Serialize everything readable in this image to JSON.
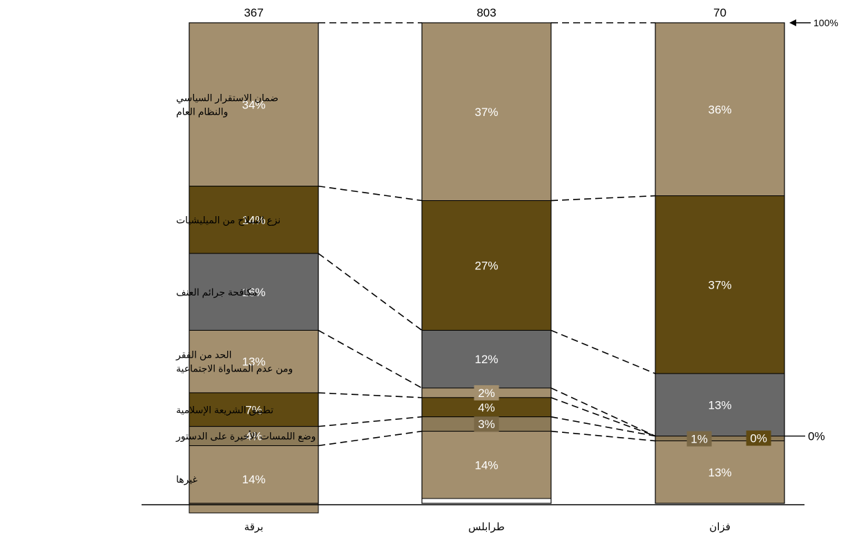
{
  "colors": {
    "tan": "#A38F6E",
    "brown": "#604A12",
    "gray": "#686868",
    "mid": "#8C7A58",
    "label_bg_tan": "#A38F6E",
    "label_bg_dark": "#7A6846",
    "text_dark": "#000000",
    "text_light": "#ffffff"
  },
  "chart_data": {
    "type": "bar",
    "stacked": true,
    "normalized": true,
    "top_marker_label": "100%",
    "zero_marker_label": "0%",
    "categories": [
      "برقة",
      "طرابلس",
      "فزان"
    ],
    "counts": [
      "367",
      "803",
      "70"
    ],
    "series": [
      {
        "name": "ضمان الاستقرار السياسي\nوالنظام العام",
        "color_key": "tan",
        "values": [
          34,
          37,
          36
        ],
        "labels": [
          "34%",
          "37%",
          "36%"
        ]
      },
      {
        "name": "نزع السلاح من الميليشيات",
        "color_key": "brown",
        "values": [
          14,
          27,
          37
        ],
        "labels": [
          "14%",
          "27%",
          "37%"
        ]
      },
      {
        "name": "مكافحة جرائم العنف",
        "color_key": "gray",
        "values": [
          16,
          12,
          13
        ],
        "labels": [
          "16%",
          "12%",
          "13%"
        ]
      },
      {
        "name": "الحد من الفقر\nومن عدم المساواة الاجتماعية",
        "color_key": "tan",
        "values": [
          13,
          2,
          0
        ],
        "labels": [
          "13%",
          "2%",
          "0%"
        ]
      },
      {
        "name": "تطبيق الشريعة الإسلامية",
        "color_key": "brown",
        "values": [
          7,
          4,
          0
        ],
        "labels": [
          "7%",
          "4%",
          "0%"
        ]
      },
      {
        "name": "وضع اللمسات الأخيرة على الدستور",
        "color_key": "mid",
        "values": [
          4,
          3,
          1
        ],
        "labels": [
          "4%",
          "3%",
          "1%"
        ]
      },
      {
        "name": "غيرها",
        "color_key": "tan",
        "values": [
          14,
          14,
          13
        ],
        "labels": [
          "14%",
          "14%",
          "13%"
        ]
      }
    ],
    "ylim": [
      0,
      100
    ],
    "xlabel": "",
    "ylabel": ""
  }
}
